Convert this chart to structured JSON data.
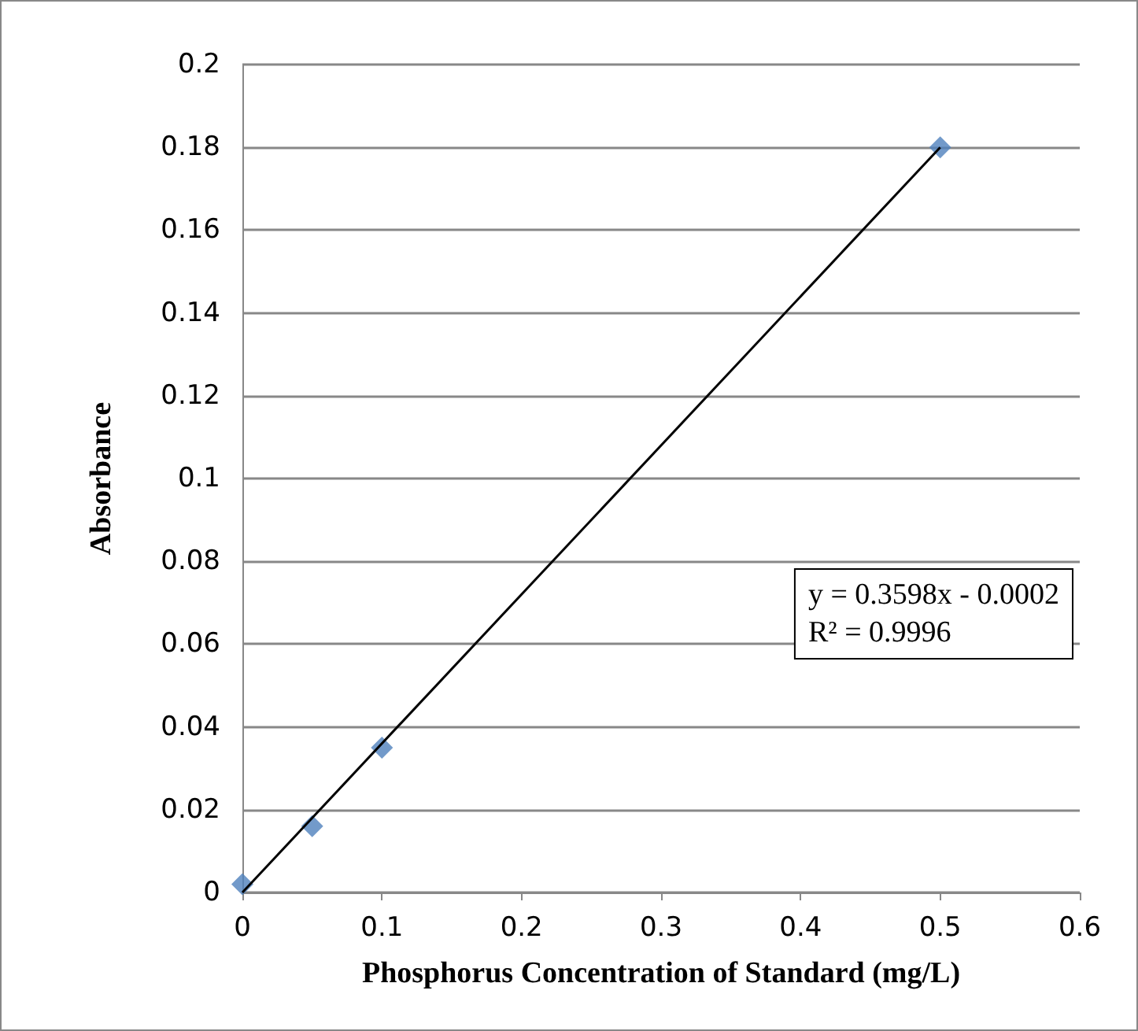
{
  "chart_data": {
    "type": "scatter",
    "xlabel": "Phosphorus Concentration of Standard (mg/L)",
    "ylabel": "Absorbance",
    "series": [
      {
        "color": "#4f81bd",
        "marker": "diamond",
        "x": [
          0,
          0.05,
          0.1,
          0.5
        ],
        "values": [
          0.002,
          0.016,
          0.035,
          0.18
        ]
      },
      {
        "type": "line",
        "color": "#000000",
        "marker": "none",
        "x": [
          0,
          0.5
        ],
        "values": [
          0,
          0.18
        ]
      }
    ],
    "annotations": [
      "y = 0.3598x - 0.0002",
      "R² = 0.9996"
    ],
    "xlim": [
      0,
      0.6
    ],
    "xticks": [
      0,
      0.1,
      0.2,
      0.3,
      0.4,
      0.5,
      0.6
    ],
    "ylim": [
      0,
      0.2
    ],
    "yticks": [
      0,
      0.02,
      0.04,
      0.06,
      0.08,
      0.1,
      0.12,
      0.14,
      0.16,
      0.18,
      0.2
    ],
    "grid": "y"
  }
}
